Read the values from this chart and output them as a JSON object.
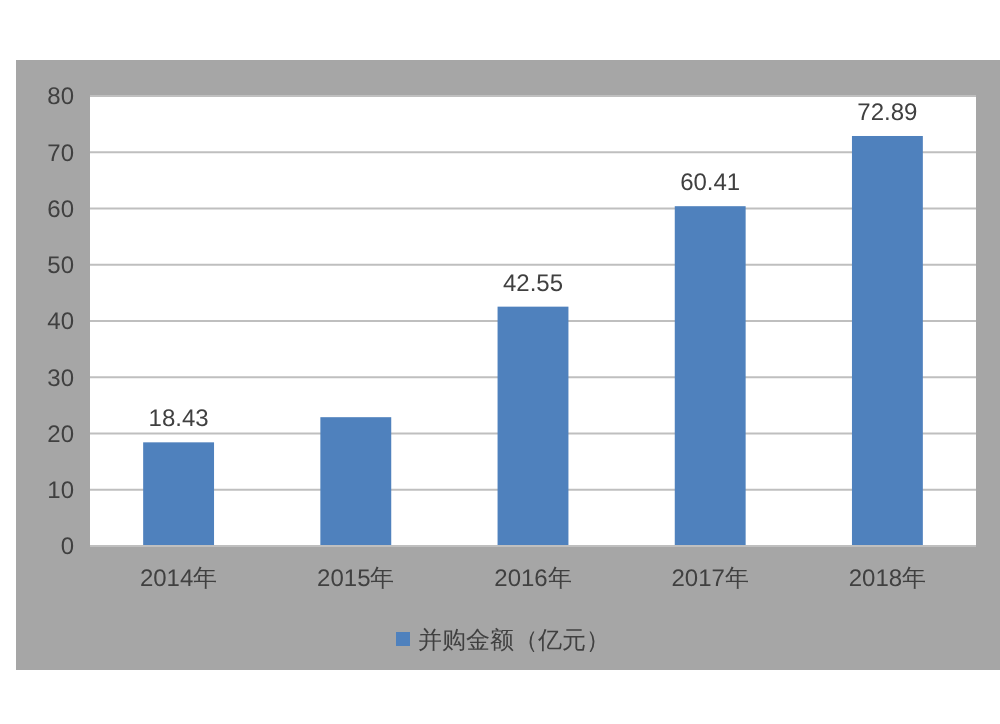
{
  "chart_data": {
    "type": "bar",
    "categories": [
      "2014年",
      "2015年",
      "2016年",
      "2017年",
      "2018年"
    ],
    "series": [
      {
        "name": "并购金额（亿元）",
        "color": "#4f81bd",
        "values": [
          18.43,
          22.9,
          42.55,
          60.41,
          72.89
        ],
        "value_labels": [
          "18.43",
          null,
          "42.55",
          "60.41",
          "72.89"
        ]
      }
    ],
    "ylim": [
      0,
      80
    ],
    "yticks": [
      0,
      10,
      20,
      30,
      40,
      50,
      60,
      70,
      80
    ],
    "grid": "y",
    "legend": "bottom"
  }
}
